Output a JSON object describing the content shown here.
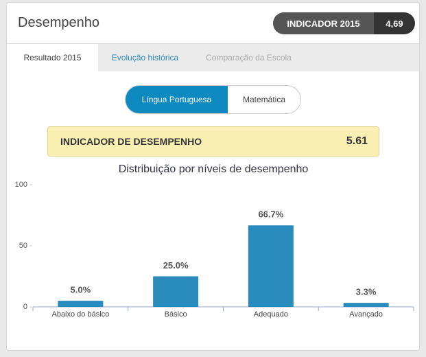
{
  "header": {
    "title": "Desempenho",
    "badge_label": "INDICADOR 2015",
    "badge_value": "4,69"
  },
  "tabs": [
    "Resultado 2015",
    "Evolução histórica",
    "Comparação da Escola"
  ],
  "toggle": [
    "Língua Portuguesa",
    "Matemática"
  ],
  "indicator": {
    "label": "INDICADOR DE DESEMPENHO",
    "value": 5.61
  },
  "chart_data": {
    "type": "bar",
    "title": "Distribuição por níveis de desempenho",
    "categories": [
      "Abaixo do básico",
      "Básico",
      "Adequado",
      "Avançado"
    ],
    "values": [
      5.0,
      25.0,
      66.7,
      3.3
    ],
    "value_labels": [
      "5.0%",
      "25.0%",
      "66.7%",
      "3.3%"
    ],
    "color": "#2a8bbd",
    "ylim": [
      0,
      100
    ],
    "yticks": [
      0,
      50,
      100
    ]
  }
}
